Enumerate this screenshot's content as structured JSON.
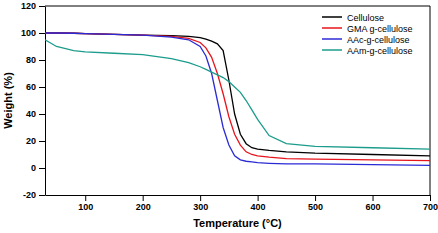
{
  "chart_data": {
    "type": "line",
    "x_label": "Temperature (°C)",
    "y_label": "Weight (%)",
    "x": [
      30,
      50,
      80,
      100,
      150,
      200,
      250,
      280,
      300,
      310,
      320,
      330,
      340,
      350,
      360,
      370,
      380,
      390,
      400,
      420,
      450,
      500,
      600,
      700
    ],
    "series": [
      {
        "name": "Cellulose",
        "color": "#000000",
        "values": [
          100,
          100,
          99.8,
          99.5,
          99,
          98.5,
          98,
          97.5,
          96.5,
          95.5,
          94,
          92,
          87,
          65,
          40,
          25,
          18,
          15,
          14,
          13,
          12,
          11,
          10,
          9
        ]
      },
      {
        "name": "GMA g-cellulose",
        "color": "#e8141c",
        "values": [
          100,
          100,
          99.8,
          99.5,
          99,
          98.5,
          97.5,
          96,
          93,
          89,
          82,
          70,
          55,
          38,
          25,
          17,
          12,
          10,
          9,
          8,
          7,
          6.5,
          6,
          5.5
        ]
      },
      {
        "name": "AAc-g-cellulose",
        "color": "#2b2bd6",
        "values": [
          100,
          100,
          99.8,
          99.5,
          99,
          98.5,
          97,
          95,
          90,
          83,
          70,
          50,
          30,
          17,
          9,
          6,
          5,
          4.5,
          4,
          3.5,
          3,
          3,
          2.5,
          2
        ]
      },
      {
        "name": "AAm-g-cellulose",
        "color": "#1c9c8c",
        "values": [
          95,
          90,
          87,
          86,
          85,
          84,
          81,
          78,
          75,
          73,
          71,
          69,
          67,
          64,
          60,
          56,
          50,
          43,
          36,
          24,
          18,
          16,
          15,
          14
        ]
      }
    ],
    "xlim": [
      30,
      700
    ],
    "xticks": [
      100,
      200,
      300,
      400,
      500,
      600,
      700
    ],
    "ylim": [
      -20,
      120
    ],
    "yticks": [
      -20,
      0,
      20,
      40,
      60,
      80,
      100,
      120
    ],
    "grid": false,
    "legend": "top-right"
  }
}
